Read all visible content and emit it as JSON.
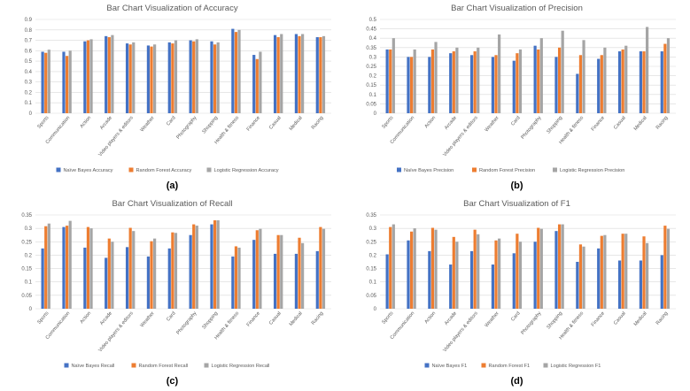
{
  "colors": {
    "naive_bayes": "#4472c4",
    "random_forest": "#ed7d31",
    "logistic_regression": "#a5a5a5"
  },
  "panels": [
    {
      "sub_label": "(a)"
    },
    {
      "sub_label": "(b)"
    },
    {
      "sub_label": "(c)"
    },
    {
      "sub_label": "(d)"
    }
  ],
  "chart_data": [
    {
      "type": "bar",
      "title": "Bar Chart Visualization of Accuracy",
      "categories": [
        "Sports",
        "Communication",
        "Action",
        "Arcade",
        "Video players & editors",
        "Weather",
        "Card",
        "Photography",
        "Shopping",
        "Health & fitness",
        "Finance",
        "Casual",
        "Medical",
        "Racing"
      ],
      "ylim": [
        0,
        0.9
      ],
      "yticks": [
        0,
        0.1,
        0.2,
        0.3,
        0.4,
        0.5,
        0.6,
        0.7,
        0.8,
        0.9
      ],
      "ytick_labels": [
        "0",
        "0.1",
        "0.2",
        "0.3",
        "0.4",
        "0.5",
        "0.6",
        "0.7",
        "0.8",
        "0.9"
      ],
      "grid": true,
      "legend_position": "bottom",
      "series": [
        {
          "name": "Naïve Bayes Accuracy",
          "values": [
            0.59,
            0.59,
            0.69,
            0.74,
            0.67,
            0.65,
            0.68,
            0.7,
            0.69,
            0.81,
            0.56,
            0.75,
            0.76,
            0.73
          ]
        },
        {
          "name": "Random Forest Accuracy",
          "values": [
            0.58,
            0.55,
            0.7,
            0.73,
            0.66,
            0.64,
            0.67,
            0.69,
            0.66,
            0.78,
            0.52,
            0.73,
            0.74,
            0.73
          ]
        },
        {
          "name": "Logistic Regression Accuracy",
          "values": [
            0.61,
            0.6,
            0.71,
            0.75,
            0.68,
            0.66,
            0.7,
            0.71,
            0.68,
            0.8,
            0.59,
            0.76,
            0.76,
            0.74
          ]
        }
      ]
    },
    {
      "type": "bar",
      "title": "Bar Chart Visualization of Precision",
      "categories": [
        "Sports",
        "Communication",
        "Action",
        "Arcade",
        "Video players & editors",
        "Weather",
        "Card",
        "Photography",
        "Shopping",
        "Health & fitness",
        "Finance",
        "Casual",
        "Medical",
        "Racing"
      ],
      "ylim": [
        0,
        0.5
      ],
      "yticks": [
        0,
        0.05,
        0.1,
        0.15,
        0.2,
        0.25,
        0.3,
        0.35,
        0.4,
        0.45,
        0.5
      ],
      "ytick_labels": [
        "0",
        "0.05",
        "0.1",
        "0.15",
        "0.2",
        "0.25",
        "0.3",
        "0.35",
        "0.4",
        "0.45",
        "0.5"
      ],
      "grid": true,
      "legend_position": "bottom",
      "series": [
        {
          "name": "Naïve Bayes Precision",
          "values": [
            0.34,
            0.3,
            0.3,
            0.32,
            0.31,
            0.3,
            0.28,
            0.36,
            0.3,
            0.21,
            0.29,
            0.33,
            0.33,
            0.33
          ]
        },
        {
          "name": "Random Forest Precision",
          "values": [
            0.34,
            0.3,
            0.34,
            0.33,
            0.33,
            0.31,
            0.32,
            0.34,
            0.35,
            0.31,
            0.31,
            0.34,
            0.33,
            0.37
          ]
        },
        {
          "name": "Logistic Regression Precision",
          "values": [
            0.4,
            0.34,
            0.38,
            0.35,
            0.35,
            0.42,
            0.34,
            0.4,
            0.44,
            0.39,
            0.35,
            0.36,
            0.46,
            0.4
          ]
        }
      ]
    },
    {
      "type": "bar",
      "title": "Bar Chart Visualization of Recall",
      "categories": [
        "Sports",
        "Communication",
        "Action",
        "Arcade",
        "Video players & editors",
        "Weather",
        "Card",
        "Photography",
        "Shopping",
        "Health & fitness",
        "Finance",
        "Casual",
        "Medical",
        "Racing"
      ],
      "ylim": [
        0,
        0.35
      ],
      "yticks": [
        0,
        0.05,
        0.1,
        0.15,
        0.2,
        0.25,
        0.3,
        0.35
      ],
      "ytick_labels": [
        "0",
        "0.05",
        "0.1",
        "0.15",
        "0.2",
        "0.25",
        "0.3",
        "0.35"
      ],
      "grid": true,
      "legend_position": "bottom",
      "series": [
        {
          "name": "Naïve Bayes Recall",
          "values": [
            0.225,
            0.305,
            0.228,
            0.19,
            0.23,
            0.195,
            0.225,
            0.275,
            0.315,
            0.195,
            0.257,
            0.205,
            0.205,
            0.215
          ]
        },
        {
          "name": "Random Forest Recall",
          "values": [
            0.308,
            0.31,
            0.305,
            0.262,
            0.302,
            0.252,
            0.285,
            0.315,
            0.33,
            0.233,
            0.293,
            0.275,
            0.265,
            0.305
          ]
        },
        {
          "name": "Logistic Regression Recall",
          "values": [
            0.318,
            0.328,
            0.3,
            0.25,
            0.29,
            0.262,
            0.283,
            0.31,
            0.33,
            0.228,
            0.298,
            0.275,
            0.245,
            0.298
          ]
        }
      ]
    },
    {
      "type": "bar",
      "title": "Bar Chart Visualization of F1",
      "categories": [
        "Sports",
        "Communication",
        "Action",
        "Arcade",
        "Video players & editors",
        "Weather",
        "Card",
        "Photography",
        "Shopping",
        "Health & fitness",
        "Finance",
        "Casual",
        "Medical",
        "Racing"
      ],
      "ylim": [
        0,
        0.35
      ],
      "yticks": [
        0,
        0.05,
        0.1,
        0.15,
        0.2,
        0.25,
        0.3,
        0.35
      ],
      "ytick_labels": [
        "0",
        "0.05",
        "0.1",
        "0.15",
        "0.2",
        "0.25",
        "0.3",
        "0.35"
      ],
      "grid": true,
      "legend_position": "bottom",
      "series": [
        {
          "name": "Naïve Bayes F1",
          "values": [
            0.203,
            0.255,
            0.215,
            0.165,
            0.215,
            0.165,
            0.207,
            0.25,
            0.29,
            0.175,
            0.225,
            0.18,
            0.18,
            0.2
          ]
        },
        {
          "name": "Random Forest F1",
          "values": [
            0.305,
            0.288,
            0.302,
            0.268,
            0.295,
            0.255,
            0.28,
            0.302,
            0.315,
            0.24,
            0.272,
            0.28,
            0.27,
            0.31
          ]
        },
        {
          "name": "Logistic Regression F1",
          "values": [
            0.315,
            0.3,
            0.295,
            0.25,
            0.278,
            0.262,
            0.25,
            0.298,
            0.315,
            0.232,
            0.275,
            0.28,
            0.245,
            0.298
          ]
        }
      ]
    }
  ]
}
